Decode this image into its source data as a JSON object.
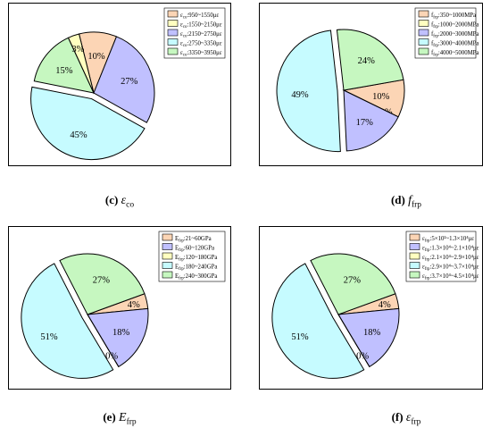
{
  "panels": [
    {
      "id": "c",
      "caption": {
        "letter": "(c)",
        "symbol": "ε",
        "sub": "co"
      },
      "chart_data": {
        "type": "pie",
        "legend_placement": "top-right",
        "series": [
          {
            "label_prefix": "ε",
            "label_sub": "co",
            "label_range": ":950~1550με",
            "value": 10,
            "label": "10%",
            "color": "#fcd5b5"
          },
          {
            "label_prefix": "ε",
            "label_sub": "co",
            "label_range": ":1550~2150με",
            "value": 3,
            "label": "3%",
            "color": "#ffffc0"
          },
          {
            "label_prefix": "ε",
            "label_sub": "co",
            "label_range": ":2150~2750με",
            "value": 27,
            "label": "27%",
            "color": "#c0c0ff"
          },
          {
            "label_prefix": "ε",
            "label_sub": "co",
            "label_range": ":2750~3350με",
            "value": 45,
            "label": "45%",
            "color": "#c6fbff"
          },
          {
            "label_prefix": "ε",
            "label_sub": "co",
            "label_range": ":3350~3950με",
            "value": 15,
            "label": "15%",
            "color": "#c6f7c0"
          }
        ],
        "pie_order": [
          0,
          2,
          3,
          4,
          1
        ],
        "exploded": 3
      }
    },
    {
      "id": "d",
      "caption": {
        "letter": "(d)",
        "symbol": "f",
        "sub": "frp"
      },
      "chart_data": {
        "type": "pie",
        "legend_placement": "top-right",
        "series": [
          {
            "label_prefix": "f",
            "label_sub": "frp",
            "label_range": ":350~1000MPa",
            "value": 10,
            "label": "10%",
            "color": "#fcd5b5"
          },
          {
            "label_prefix": "f",
            "label_sub": "frp",
            "label_range": ":1000~2000MPa",
            "value": 0,
            "label": "0%",
            "color": "#ffffc0"
          },
          {
            "label_prefix": "f",
            "label_sub": "frp",
            "label_range": ":2000~3000MPa",
            "value": 17,
            "label": "17%",
            "color": "#c0c0ff"
          },
          {
            "label_prefix": "f",
            "label_sub": "frp",
            "label_range": ":3000~4000MPa",
            "value": 49,
            "label": "49%",
            "color": "#c6fbff"
          },
          {
            "label_prefix": "f",
            "label_sub": "frp",
            "label_range": ":4000~5000MPa",
            "value": 24,
            "label": "24%",
            "color": "#c6f7c0"
          }
        ],
        "pie_order": [
          0,
          1,
          2,
          3,
          4
        ],
        "exploded": 3
      }
    },
    {
      "id": "e",
      "caption": {
        "letter": "(e)",
        "symbol": "E",
        "sub": "frp"
      },
      "chart_data": {
        "type": "pie",
        "legend_placement": "top-right",
        "series": [
          {
            "label_prefix": "E",
            "label_sub": "frp",
            "label_range": ":21~60GPa",
            "value": 4,
            "label": "4%",
            "color": "#fcd5b5"
          },
          {
            "label_prefix": "E",
            "label_sub": "frp",
            "label_range": ":60~120GPa",
            "value": 18,
            "label": "18%",
            "color": "#c0c0ff"
          },
          {
            "label_prefix": "E",
            "label_sub": "frp",
            "label_range": ":120~180GPa",
            "value": 0,
            "label": "0%",
            "color": "#ffffc0"
          },
          {
            "label_prefix": "E",
            "label_sub": "frp",
            "label_range": ":180~240GPa",
            "value": 51,
            "label": "51%",
            "color": "#c6fbff"
          },
          {
            "label_prefix": "E",
            "label_sub": "frp",
            "label_range": ":240~300GPa",
            "value": 27,
            "label": "27%",
            "color": "#c6f7c0"
          }
        ],
        "pie_order": [
          0,
          1,
          2,
          3,
          4
        ],
        "exploded": 3
      }
    },
    {
      "id": "f",
      "caption": {
        "letter": "(f)",
        "symbol": "ε",
        "sub": "frp"
      },
      "chart_data": {
        "type": "pie",
        "legend_placement": "top-right",
        "series": [
          {
            "label_prefix": "ε",
            "label_sub": "frp",
            "label_range": ":5×10³~1.3×10⁴με",
            "value": 4,
            "label": "4%",
            "color": "#fcd5b5"
          },
          {
            "label_prefix": "ε",
            "label_sub": "frp",
            "label_range": ":1.3×10⁴~2.1×10⁴με",
            "value": 18,
            "label": "18%",
            "color": "#c0c0ff"
          },
          {
            "label_prefix": "ε",
            "label_sub": "frp",
            "label_range": ":2.1×10⁴~2.9×10⁴με",
            "value": 0,
            "label": "0%",
            "color": "#ffffc0"
          },
          {
            "label_prefix": "ε",
            "label_sub": "frp",
            "label_range": ":2.9×10⁴~3.7×10⁴με",
            "value": 51,
            "label": "51%",
            "color": "#c6fbff"
          },
          {
            "label_prefix": "ε",
            "label_sub": "frp",
            "label_range": ":3.7×10⁴~4.5×10⁴με",
            "value": 27,
            "label": "27%",
            "color": "#c6f7c0"
          }
        ],
        "pie_order": [
          0,
          1,
          2,
          3,
          4
        ],
        "exploded": 3
      }
    }
  ]
}
